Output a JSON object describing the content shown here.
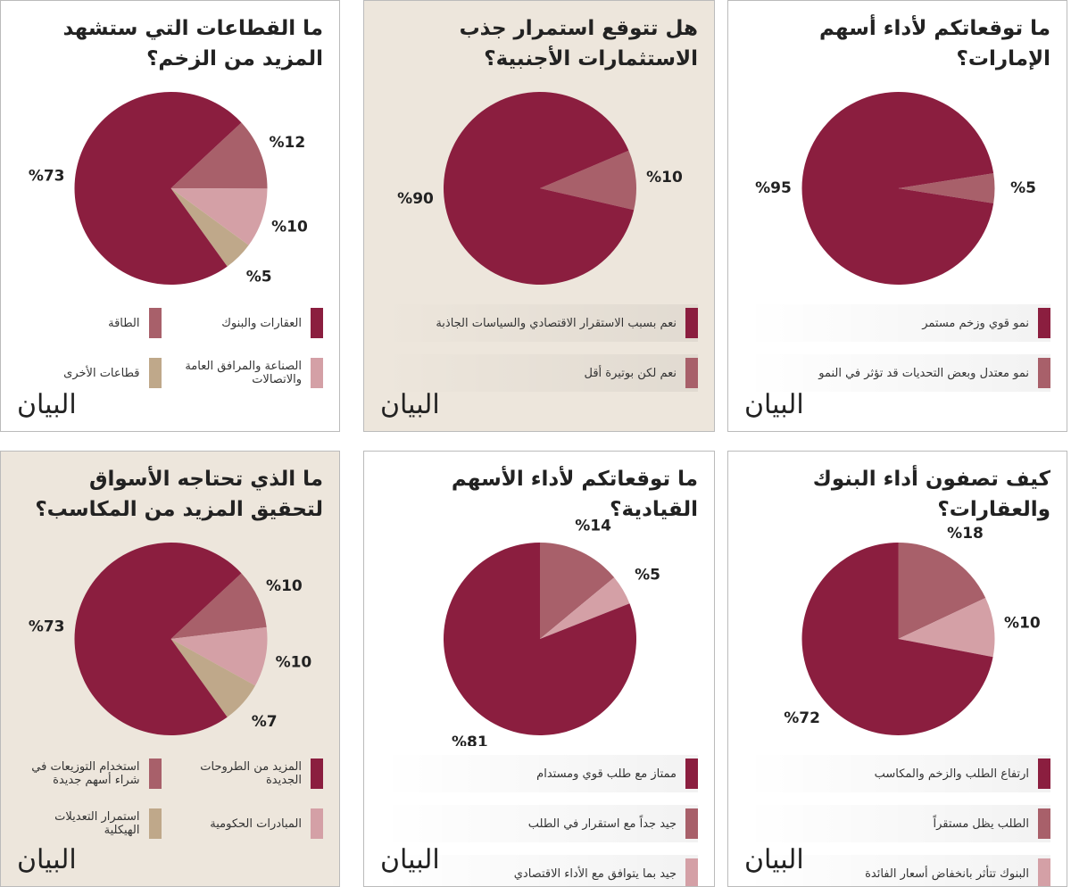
{
  "brand": "البيان",
  "chart_data": [
    {
      "type": "pie",
      "title": "ما توقعاتكم لأداء أسهم الإمارات؟",
      "categories": [
        "نمو قوي وزخم مستمر",
        "نمو معتدل وبعض التحديات قد تؤثر في النمو"
      ],
      "values": [
        95,
        5
      ],
      "value_labels": [
        "%95",
        "%5"
      ],
      "colors": [
        "#8b1e3f",
        "#a8606a"
      ]
    },
    {
      "type": "pie",
      "title": "هل تتوقع استمرار جذب الاستثمارات الأجنبية؟",
      "categories": [
        "نعم بسبب الاستقرار الاقتصادي والسياسات الجاذبة",
        "نعم لكن بوتيرة أقل"
      ],
      "values": [
        90,
        10
      ],
      "value_labels": [
        "%90",
        "%10"
      ],
      "colors": [
        "#8b1e3f",
        "#a8606a"
      ]
    },
    {
      "type": "pie",
      "title": "ما القطاعات التي ستشهد المزيد من الزخم؟",
      "categories": [
        "العقارات والبنوك",
        "الطاقة",
        "الصناعة والمرافق العامة والاتصالات",
        "قطاعات الأخرى"
      ],
      "values": [
        73,
        12,
        10,
        5
      ],
      "value_labels": [
        "%73",
        "%12",
        "%10",
        "%5"
      ],
      "colors": [
        "#8b1e3f",
        "#a8606a",
        "#d4a0a6",
        "#bfa88a"
      ]
    },
    {
      "type": "pie",
      "title": "كيف تصفون أداء البنوك والعقارات؟",
      "categories": [
        "ارتفاع الطلب والزخم والمكاسب",
        "الطلب يظل مستقراً",
        "البنوك تتأثر بانخفاض أسعار الفائدة"
      ],
      "values": [
        72,
        18,
        10
      ],
      "value_labels": [
        "%72",
        "%18",
        "%10"
      ],
      "colors": [
        "#8b1e3f",
        "#a8606a",
        "#d4a0a6"
      ]
    },
    {
      "type": "pie",
      "title": "ما توقعاتكم لأداء الأسهم القيادية؟",
      "categories": [
        "ممتاز مع طلب قوي ومستدام",
        "جيد جداً مع استقرار في الطلب",
        "جيد بما يتوافق مع الأداء الاقتصادي"
      ],
      "values": [
        81,
        14,
        5
      ],
      "value_labels": [
        "%81",
        "%14",
        "%5"
      ],
      "colors": [
        "#8b1e3f",
        "#a8606a",
        "#d4a0a6"
      ]
    },
    {
      "type": "pie",
      "title": "ما الذي تحتاجه الأسواق لتحقيق المزيد من المكاسب؟",
      "categories": [
        "المزيد من الطروحات الجديدة",
        "استخدام التوزيعات في شراء أسهم جديدة",
        "المبادرات الحكومية",
        "استمرار التعديلات الهيكلية"
      ],
      "values": [
        73,
        10,
        10,
        7
      ],
      "value_labels": [
        "%73",
        "%10",
        "%10",
        "%7"
      ],
      "colors": [
        "#8b1e3f",
        "#a8606a",
        "#d4a0a6",
        "#bfa88a"
      ]
    }
  ]
}
